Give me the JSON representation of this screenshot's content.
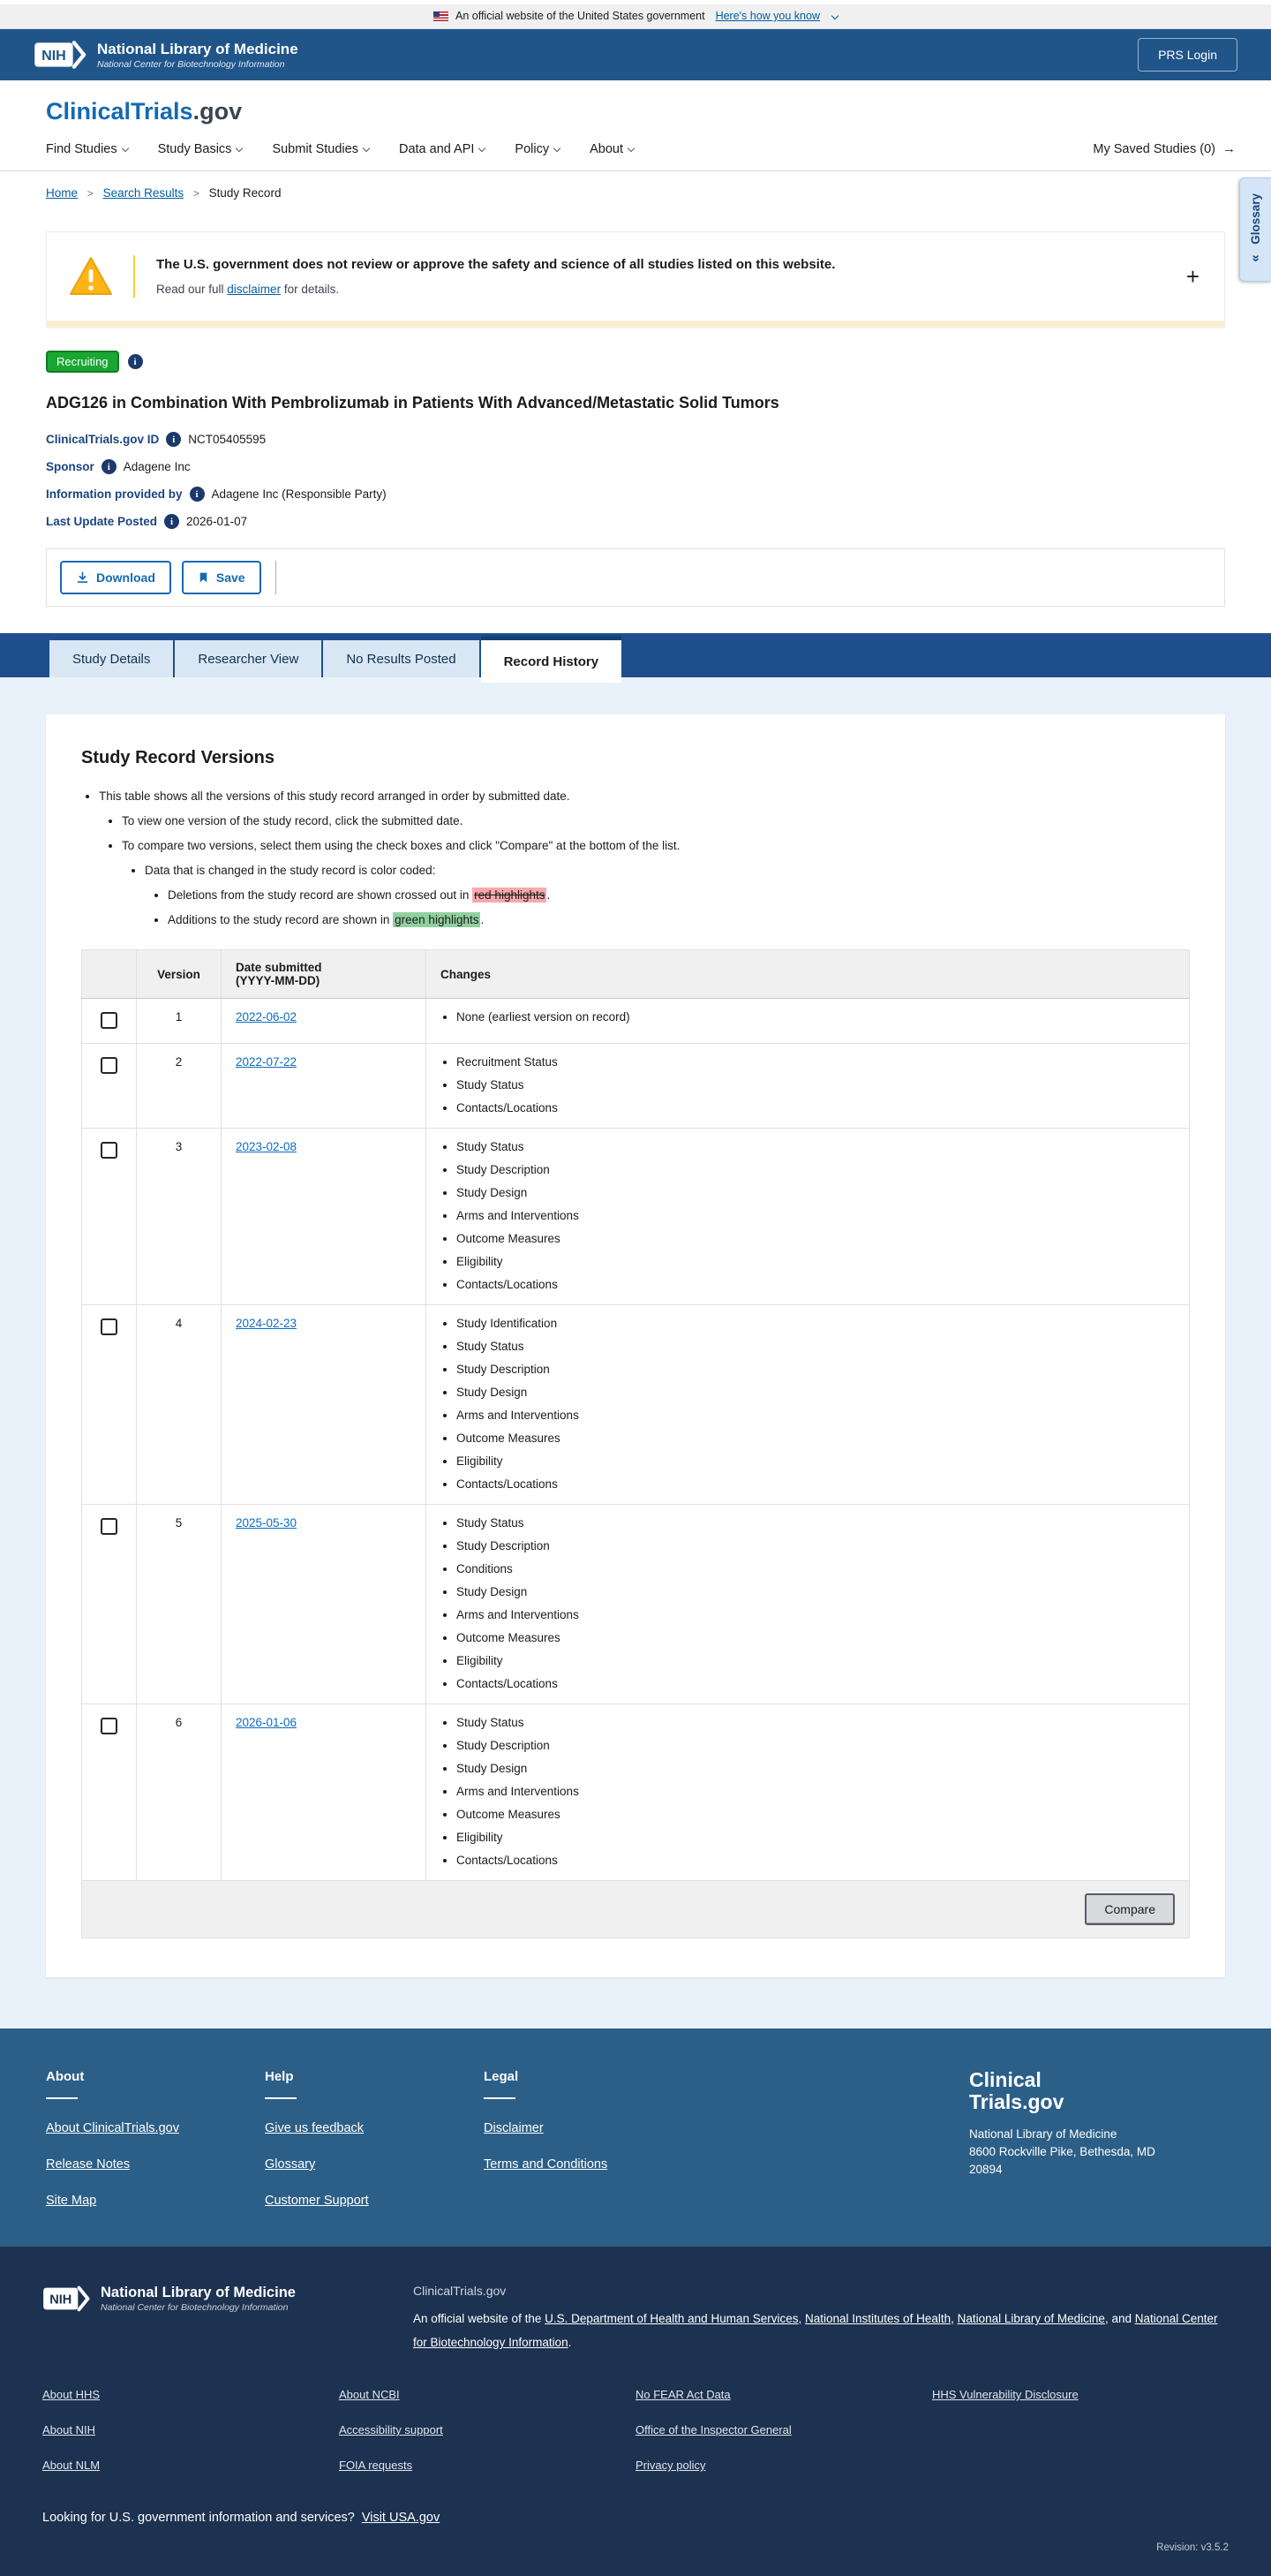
{
  "banner": {
    "official_text": "An official website of the United States government",
    "link_label": "Here's how you know"
  },
  "nih_header": {
    "logo_acronym": "NIH",
    "title": "National Library of Medicine",
    "subtitle": "National Center for Biotechnology Information",
    "prs_login": "PRS Login"
  },
  "site_header": {
    "brand_primary": "ClinicalTrials",
    "brand_suffix": ".gov",
    "nav": [
      "Find Studies",
      "Study Basics",
      "Submit Studies",
      "Data and API",
      "Policy",
      "About"
    ],
    "saved_label": "My Saved Studies (0)"
  },
  "breadcrumb": {
    "items": [
      "Home",
      "Search Results",
      "Study Record"
    ]
  },
  "glossary_tab": {
    "label": "Glossary"
  },
  "warning": {
    "headline": "The U.S. government does not review or approve the safety and science of all studies listed on this website.",
    "sub_prefix": "Read our full ",
    "link": "disclaimer",
    "sub_suffix": " for details."
  },
  "study": {
    "status": "Recruiting",
    "title": "ADG126 in Combination With Pembrolizumab in Patients With Advanced/Metastatic Solid Tumors",
    "fields": [
      {
        "label": "ClinicalTrials.gov ID",
        "value": "NCT05405595"
      },
      {
        "label": "Sponsor",
        "value": "Adagene Inc"
      },
      {
        "label": "Information provided by",
        "value": "Adagene Inc (Responsible Party)"
      },
      {
        "label": "Last Update Posted",
        "value": "2026-01-07"
      }
    ]
  },
  "actions": {
    "download": "Download",
    "save": "Save"
  },
  "tabs": [
    {
      "label": "Study Details",
      "active": false
    },
    {
      "label": "Researcher View",
      "active": false
    },
    {
      "label": "No Results Posted",
      "active": false
    },
    {
      "label": "Record History",
      "active": true
    }
  ],
  "record_history": {
    "heading": "Study Record Versions",
    "intro": {
      "line1": "This table shows all the versions of this study record arranged in order by submitted date.",
      "line2": "To view one version of the study record, click the submitted date.",
      "line3": "To compare two versions, select them using the check boxes and click \"Compare\" at the bottom of the list.",
      "line4": "Data that is changed in the study record is color coded:",
      "line5_prefix": "Deletions from the study record are shown crossed out in ",
      "line5_highlight": "red highlights",
      "line5_suffix": ".",
      "line6_prefix": "Additions to the study record are shown in ",
      "line6_highlight": "green highlights",
      "line6_suffix": "."
    },
    "table": {
      "header_version": "Version",
      "header_date_line1": "Date submitted",
      "header_date_line2": "(YYYY-MM-DD)",
      "header_changes": "Changes",
      "rows": [
        {
          "version": "1",
          "date": "2022-06-02",
          "changes": [
            "None (earliest version on record)"
          ]
        },
        {
          "version": "2",
          "date": "2022-07-22",
          "changes": [
            "Recruitment Status",
            "Study Status",
            "Contacts/Locations"
          ]
        },
        {
          "version": "3",
          "date": "2023-02-08",
          "changes": [
            "Study Status",
            "Study Description",
            "Study Design",
            "Arms and Interventions",
            "Outcome Measures",
            "Eligibility",
            "Contacts/Locations"
          ]
        },
        {
          "version": "4",
          "date": "2024-02-23",
          "changes": [
            "Study Identification",
            "Study Status",
            "Study Description",
            "Study Design",
            "Arms and Interventions",
            "Outcome Measures",
            "Eligibility",
            "Contacts/Locations"
          ]
        },
        {
          "version": "5",
          "date": "2025-05-30",
          "changes": [
            "Study Status",
            "Study Description",
            "Conditions",
            "Study Design",
            "Arms and Interventions",
            "Outcome Measures",
            "Eligibility",
            "Contacts/Locations"
          ]
        },
        {
          "version": "6",
          "date": "2026-01-06",
          "changes": [
            "Study Status",
            "Study Description",
            "Study Design",
            "Arms and Interventions",
            "Outcome Measures",
            "Eligibility",
            "Contacts/Locations"
          ]
        }
      ],
      "compare_label": "Compare"
    }
  },
  "footer_mid": {
    "columns": [
      {
        "heading": "About",
        "links": [
          "About ClinicalTrials.gov",
          "Release Notes",
          "Site Map"
        ]
      },
      {
        "heading": "Help",
        "links": [
          "Give us feedback",
          "Glossary",
          "Customer Support"
        ]
      },
      {
        "heading": "Legal",
        "links": [
          "Disclaimer",
          "Terms and Conditions"
        ]
      }
    ],
    "logo_line1": "Clinical",
    "logo_line2": "Trials.gov",
    "address_lines": [
      "National Library of Medicine",
      "8600 Rockville Pike, Bethesda, MD",
      "20894"
    ]
  },
  "footer_dark": {
    "nlm_logo_acronym": "NIH",
    "nlm_title": "National Library of Medicine",
    "nlm_subtitle": "National Center for Biotechnology Information",
    "site_name": "ClinicalTrials.gov",
    "official_prefix": "An official website of the ",
    "official_links": [
      "U.S. Department of Health and Human Services",
      "National Institutes of Health",
      "National Library of Medicine",
      "National Center for Biotechnology Information"
    ],
    "link_columns": [
      [
        "About HHS",
        "About NIH",
        "About NLM"
      ],
      [
        "About NCBI",
        "Accessibility support",
        "FOIA requests"
      ],
      [
        "No FEAR Act Data",
        "Office of the Inspector General",
        "Privacy policy"
      ],
      [
        "HHS Vulnerability Disclosure"
      ]
    ],
    "usa_text": "Looking for U.S. government information and services?",
    "usa_link": "Visit USA.gov",
    "revision": "Revision: v3.5.2"
  },
  "icons": {
    "us-flag": "css-flag-shape",
    "chevron-down": "css-border-chevron",
    "breadcrumb_separator": ">",
    "arrow_right": "→",
    "double_chevron": "«",
    "plus": "+",
    "info_glyph": "i",
    "warning-triangle": "svg-triangle",
    "download": "svg-download-tray",
    "bookmark": "svg-bookmark"
  },
  "colors": {
    "header_blue": "#20558a",
    "brand_blue": "#1569b3",
    "link_blue": "#005ea2",
    "label_navy": "#1a4480",
    "recruiting_green": "#19a632",
    "highlight_red": "#f8a9ae",
    "highlight_green": "#8fd19e",
    "tab_strip_blue": "#1e4e8c",
    "content_bg": "#e9f2fa",
    "footer_mid_blue": "#2c5f87",
    "footer_dark_navy": "#1d3150"
  }
}
